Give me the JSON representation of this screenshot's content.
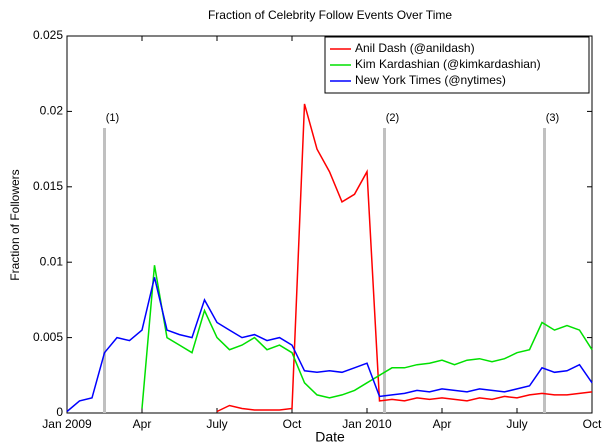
{
  "chart_data": {
    "type": "line",
    "title": "Fraction of Celebrity Follow Events Over Time",
    "x_label": "Date",
    "y_label": "Fraction of Followers",
    "x": [
      0,
      0.5,
      1,
      1.5,
      2,
      2.5,
      3,
      3.5,
      4,
      4.5,
      5,
      5.5,
      6,
      6.5,
      7,
      7.5,
      8,
      8.5,
      9,
      9.5,
      10,
      10.5,
      11,
      11.5,
      12,
      12.5,
      13,
      13.5,
      14,
      14.5,
      15,
      15.5,
      16,
      16.5,
      17,
      17.5,
      18,
      18.5,
      19,
      19.5,
      20,
      20.5,
      21
    ],
    "xlim": [
      0,
      21
    ],
    "xticks": [
      {
        "value": 0,
        "label": "Jan 2009"
      },
      {
        "value": 3,
        "label": "Apr"
      },
      {
        "value": 6,
        "label": "July"
      },
      {
        "value": 9,
        "label": "Oct"
      },
      {
        "value": 12,
        "label": "Jan 2010"
      },
      {
        "value": 15,
        "label": "Apr"
      },
      {
        "value": 18,
        "label": "July"
      },
      {
        "value": 21,
        "label": "Oct"
      }
    ],
    "ylim": [
      0,
      0.025
    ],
    "yticks": [
      0,
      0.005,
      0.01,
      0.015,
      0.02,
      0.025
    ],
    "legend": "upper right",
    "annotations": [
      {
        "x": 1.5,
        "label": "(1)"
      },
      {
        "x": 12.7,
        "label": "(2)"
      },
      {
        "x": 19.1,
        "label": "(3)"
      }
    ],
    "series": [
      {
        "name": "Anil Dash (@anildash)",
        "color": "#ff0000",
        "values": [
          null,
          null,
          null,
          null,
          null,
          null,
          null,
          null,
          null,
          null,
          null,
          null,
          0.0001,
          0.0005,
          0.0003,
          0.0002,
          0.0002,
          0.0002,
          0.0003,
          0.0205,
          0.0175,
          0.016,
          0.014,
          0.0145,
          0.016,
          0.0008,
          0.0009,
          0.0008,
          0.001,
          0.0009,
          0.001,
          0.0009,
          0.0008,
          0.001,
          0.0009,
          0.0011,
          0.001,
          0.0012,
          0.0013,
          0.0012,
          0.0012,
          0.0013,
          0.0014
        ]
      },
      {
        "name": "Kim Kardashian (@kimkardashian)",
        "color": "#00e000",
        "values": [
          null,
          null,
          null,
          null,
          null,
          null,
          0.0003,
          0.0098,
          0.005,
          0.0045,
          0.004,
          0.0068,
          0.005,
          0.0042,
          0.0045,
          0.005,
          0.0042,
          0.0045,
          0.004,
          0.002,
          0.0012,
          0.001,
          0.0012,
          0.0015,
          0.002,
          0.0025,
          0.003,
          0.003,
          0.0032,
          0.0033,
          0.0035,
          0.0032,
          0.0035,
          0.0036,
          0.0034,
          0.0036,
          0.004,
          0.0042,
          0.006,
          0.0055,
          0.0058,
          0.0055,
          0.0042
        ]
      },
      {
        "name": "New York Times (@nytimes)",
        "color": "#0000ff",
        "values": [
          0.0001,
          0.0008,
          0.001,
          0.004,
          0.005,
          0.0048,
          0.0055,
          0.009,
          0.0055,
          0.0052,
          0.005,
          0.0075,
          0.006,
          0.0055,
          0.005,
          0.0052,
          0.0048,
          0.005,
          0.0045,
          0.0028,
          0.0027,
          0.0028,
          0.0027,
          0.003,
          0.0033,
          0.0011,
          0.0012,
          0.0013,
          0.0015,
          0.0014,
          0.0016,
          0.0015,
          0.0014,
          0.0016,
          0.0015,
          0.0014,
          0.0016,
          0.0018,
          0.003,
          0.0027,
          0.0028,
          0.0032,
          0.002
        ]
      }
    ]
  }
}
